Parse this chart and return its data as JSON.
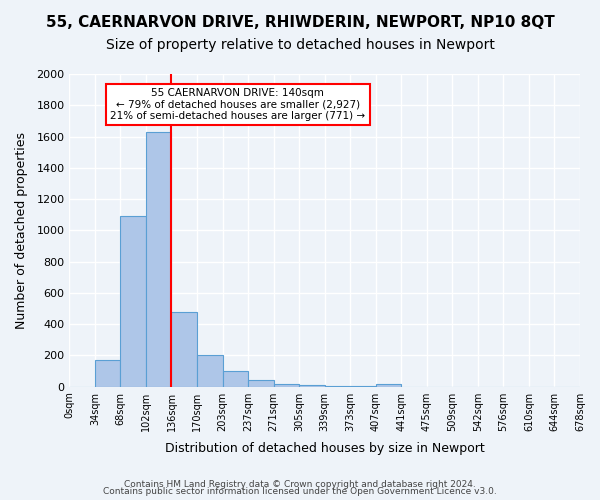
{
  "title": "55, CAERNARVON DRIVE, RHIWDERIN, NEWPORT, NP10 8QT",
  "subtitle": "Size of property relative to detached houses in Newport",
  "xlabel": "Distribution of detached houses by size in Newport",
  "ylabel": "Number of detached properties",
  "bin_edges": [
    "0sqm",
    "34sqm",
    "68sqm",
    "102sqm",
    "136sqm",
    "170sqm",
    "203sqm",
    "237sqm",
    "271sqm",
    "305sqm",
    "339sqm",
    "373sqm",
    "407sqm",
    "441sqm",
    "475sqm",
    "509sqm",
    "542sqm",
    "576sqm",
    "610sqm",
    "644sqm",
    "678sqm"
  ],
  "bar_heights": [
    0,
    168,
    1090,
    1630,
    480,
    200,
    100,
    42,
    20,
    8,
    3,
    3,
    20,
    0,
    0,
    0,
    0,
    0,
    0,
    0
  ],
  "bar_color": "#aec6e8",
  "bar_edge_color": "#5a9fd4",
  "ylim": [
    0,
    2000
  ],
  "yticks": [
    0,
    200,
    400,
    600,
    800,
    1000,
    1200,
    1400,
    1600,
    1800,
    2000
  ],
  "red_line_x": 4,
  "annotation_title": "55 CAERNARVON DRIVE: 140sqm",
  "annotation_line1": "← 79% of detached houses are smaller (2,927)",
  "annotation_line2": "21% of semi-detached houses are larger (771) →",
  "footnote1": "Contains HM Land Registry data © Crown copyright and database right 2024.",
  "footnote2": "Contains public sector information licensed under the Open Government Licence v3.0.",
  "bg_color": "#eef3f9",
  "plot_bg_color": "#eef3f9",
  "grid_color": "#ffffff",
  "title_fontsize": 11,
  "subtitle_fontsize": 10
}
